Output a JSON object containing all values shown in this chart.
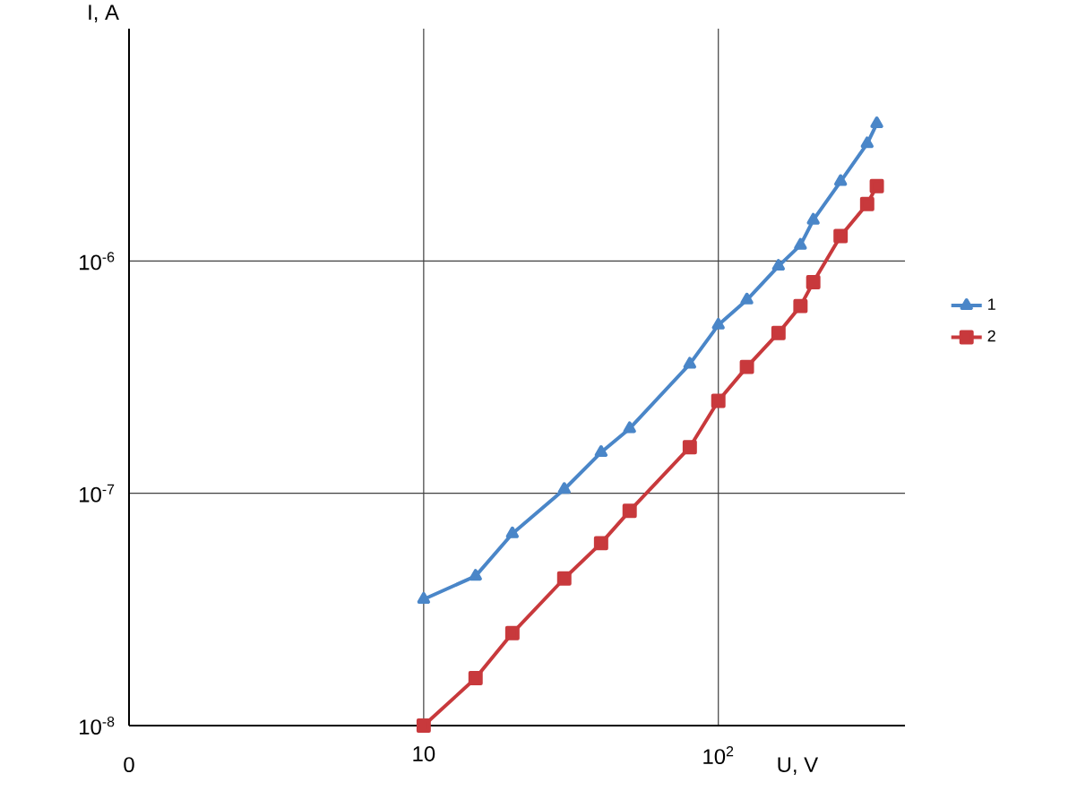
{
  "chart_data": {
    "type": "line",
    "xlabel": "U, V",
    "ylabel": "I, A",
    "log": "xy",
    "grid": true,
    "legend": "right",
    "x": [
      10,
      15,
      20,
      30,
      40,
      50,
      80,
      100,
      125,
      160,
      190,
      210,
      260,
      320,
      345
    ],
    "xlim": [
      1,
      430
    ],
    "ylim": [
      1e-08,
      1e-05
    ],
    "annotations": [
      "0"
    ],
    "xticks": [
      {
        "value": 1,
        "label": null
      },
      10,
      {
        "value": 100,
        "label": "10$^{2}$"
      }
    ],
    "yticks": [
      {
        "value": 1e-08,
        "label": "10$^{-8}$"
      },
      {
        "value": 1e-07,
        "label": "10$^{-7}$"
      },
      {
        "value": 1e-06,
        "label": "10$^{-6}$"
      }
    ],
    "series": [
      {
        "name": "1",
        "color": "#4a86c8",
        "marker": "triangle",
        "values": [
          3.5e-08,
          4.4e-08,
          6.7e-08,
          1.04e-07,
          1.5e-07,
          1.9e-07,
          3.6e-07,
          5.3e-07,
          6.8e-07,
          9.5e-07,
          1.17e-06,
          1.5e-06,
          2.2e-06,
          3.2e-06,
          3.9e-06
        ]
      },
      {
        "name": "2",
        "color": "#c8393c",
        "marker": "square",
        "values": [
          1e-08,
          1.6e-08,
          2.5e-08,
          4.3e-08,
          6.1e-08,
          8.4e-08,
          1.58e-07,
          2.5e-07,
          3.5e-07,
          4.9e-07,
          6.4e-07,
          8.1e-07,
          1.28e-06,
          1.76e-06,
          2.1e-06
        ]
      }
    ]
  }
}
